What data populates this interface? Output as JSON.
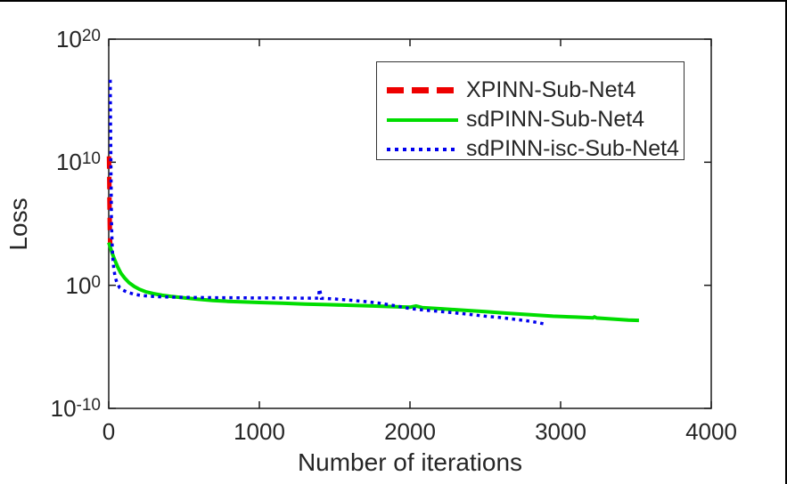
{
  "figure": {
    "background_color": "#ffffff",
    "frame_border_color": "#000000",
    "axis_line_color": "#1a1a1a",
    "text_color": "#262626"
  },
  "chart_data": {
    "type": "line",
    "title": "",
    "xlabel": "Number of iterations",
    "ylabel": "Loss",
    "x_scale": "linear",
    "y_scale": "log",
    "xlim": [
      0,
      4000
    ],
    "ylim_exponents": [
      -10,
      20
    ],
    "xticks": [
      0,
      1000,
      2000,
      3000,
      4000
    ],
    "ytick_exponents": [
      20,
      10,
      0,
      -10
    ],
    "ytick_base": "10",
    "grid": false,
    "legend_position": "upper right inside",
    "series": [
      {
        "name": "XPINN-Sub-Net4",
        "color": "#ee0000",
        "style": "dashed",
        "width": 5,
        "points": [
          [
            2,
            30000000000.0
          ],
          [
            3,
            2000000000.0
          ],
          [
            4,
            150000000.0
          ],
          [
            5,
            10000000.0
          ],
          [
            6,
            800000.0
          ],
          [
            7,
            60000.0
          ],
          [
            8,
            8000.0
          ],
          [
            10,
            2300.0
          ]
        ]
      },
      {
        "name": "sdPINN-Sub-Net4",
        "color": "#00dd00",
        "style": "solid",
        "width": 4,
        "points": [
          [
            0,
            3000
          ],
          [
            12,
            1100
          ],
          [
            25,
            350
          ],
          [
            40,
            110
          ],
          [
            60,
            30
          ],
          [
            80,
            10
          ],
          [
            105,
            4
          ],
          [
            135,
            1.6
          ],
          [
            170,
            0.8
          ],
          [
            205,
            0.47
          ],
          [
            245,
            0.3
          ],
          [
            295,
            0.21
          ],
          [
            355,
            0.155
          ],
          [
            420,
            0.122
          ],
          [
            500,
            0.097
          ],
          [
            590,
            0.074
          ],
          [
            690,
            0.059
          ],
          [
            790,
            0.05
          ],
          [
            900,
            0.044
          ],
          [
            1000,
            0.04
          ],
          [
            1150,
            0.035
          ],
          [
            1300,
            0.03
          ],
          [
            1450,
            0.027
          ],
          [
            1600,
            0.024
          ],
          [
            1750,
            0.021
          ],
          [
            1900,
            0.018
          ],
          [
            2000,
            0.0165
          ],
          [
            2040,
            0.021
          ],
          [
            2080,
            0.0155
          ],
          [
            2200,
            0.0125
          ],
          [
            2350,
            0.0095
          ],
          [
            2500,
            0.0072
          ],
          [
            2650,
            0.0053
          ],
          [
            2800,
            0.004
          ],
          [
            2950,
            0.0031
          ],
          [
            3100,
            0.0026
          ],
          [
            3215,
            0.0023
          ],
          [
            3225,
            0.0027
          ],
          [
            3240,
            0.0022
          ],
          [
            3350,
            0.0018
          ],
          [
            3450,
            0.0015
          ],
          [
            3520,
            0.0014
          ]
        ]
      },
      {
        "name": "sdPINN-isc-Sub-Net4",
        "color": "#0000ee",
        "style": "dotted",
        "width": 3.5,
        "points": [
          [
            10,
            5e+16
          ],
          [
            10.5,
            5000000000000000.0
          ],
          [
            11,
            400000000000000.0
          ],
          [
            12,
            20000000000000.0
          ],
          [
            13,
            1000000000000.0
          ],
          [
            14,
            50000000000.0
          ],
          [
            15,
            2000000000.0
          ],
          [
            16,
            100000000.0
          ],
          [
            17,
            5000000.0
          ],
          [
            18,
            300000.0
          ],
          [
            20,
            20000.0
          ],
          [
            23,
            1500
          ],
          [
            27,
            150
          ],
          [
            33,
            25
          ],
          [
            42,
            5
          ],
          [
            55,
            1.5
          ],
          [
            72,
            0.65
          ],
          [
            95,
            0.4
          ],
          [
            125,
            0.27
          ],
          [
            165,
            0.19
          ],
          [
            215,
            0.15
          ],
          [
            275,
            0.128
          ],
          [
            350,
            0.115
          ],
          [
            440,
            0.108
          ],
          [
            550,
            0.103
          ],
          [
            700,
            0.099
          ],
          [
            850,
            0.096
          ],
          [
            1000,
            0.094
          ],
          [
            1150,
            0.093
          ],
          [
            1300,
            0.091
          ],
          [
            1390,
            0.09
          ],
          [
            1400,
            0.5
          ],
          [
            1412,
            0.088
          ],
          [
            1500,
            0.078
          ],
          [
            1600,
            0.062
          ],
          [
            1700,
            0.048
          ],
          [
            1800,
            0.035
          ],
          [
            1900,
            0.022
          ],
          [
            2000,
            0.013
          ],
          [
            2100,
            0.0095
          ],
          [
            2200,
            0.0075
          ],
          [
            2300,
            0.0057
          ],
          [
            2400,
            0.0042
          ],
          [
            2500,
            0.0031
          ],
          [
            2600,
            0.0024
          ],
          [
            2700,
            0.0017
          ],
          [
            2800,
            0.0012
          ],
          [
            2900,
            0.0007
          ]
        ]
      }
    ]
  }
}
